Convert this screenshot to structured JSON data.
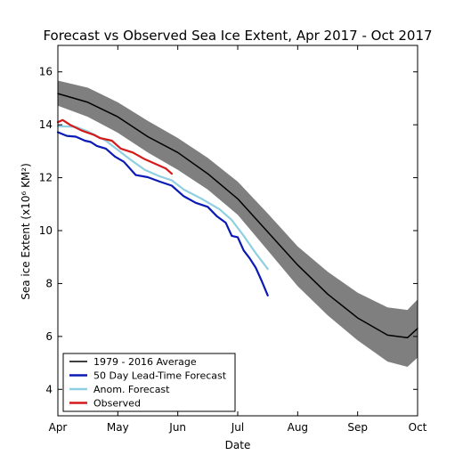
{
  "chart_data": {
    "type": "line",
    "title": "Forecast vs Observed Sea Ice Extent, Apr 2017 - Oct 2017",
    "xlabel": "Date",
    "ylabel": "Sea ice Extent (x10⁶ KM²)",
    "x_ticks": [
      "Apr",
      "May",
      "Jun",
      "Jul",
      "Aug",
      "Sep",
      "Oct"
    ],
    "xlim": [
      "Apr",
      "Oct"
    ],
    "ylim": [
      3,
      17
    ],
    "y_ticks": [
      4,
      6,
      8,
      10,
      12,
      14,
      16
    ],
    "legend_position": "lower-left",
    "band": {
      "series": "1979 - 2016 Average",
      "color": "#7f7f7f",
      "points": [
        {
          "x": 0.0,
          "lo": 14.72,
          "hi": 15.67
        },
        {
          "x": 0.5,
          "lo": 14.3,
          "hi": 15.4
        },
        {
          "x": 1.0,
          "lo": 13.7,
          "hi": 14.85
        },
        {
          "x": 1.5,
          "lo": 12.95,
          "hi": 14.15
        },
        {
          "x": 2.0,
          "lo": 12.3,
          "hi": 13.5
        },
        {
          "x": 2.5,
          "lo": 11.55,
          "hi": 12.75
        },
        {
          "x": 3.0,
          "lo": 10.6,
          "hi": 11.85
        },
        {
          "x": 3.5,
          "lo": 9.25,
          "hi": 10.65
        },
        {
          "x": 4.0,
          "lo": 7.9,
          "hi": 9.4
        },
        {
          "x": 4.5,
          "lo": 6.8,
          "hi": 8.45
        },
        {
          "x": 5.0,
          "lo": 5.85,
          "hi": 7.65
        },
        {
          "x": 5.5,
          "lo": 5.05,
          "hi": 7.1
        },
        {
          "x": 5.83,
          "lo": 4.85,
          "hi": 7.0
        },
        {
          "x": 6.0,
          "lo": 5.2,
          "hi": 7.4
        }
      ]
    },
    "series": [
      {
        "name": "1979 - 2016 Average",
        "color": "#000000",
        "width": 1.5,
        "points": [
          [
            0.0,
            15.18
          ],
          [
            0.5,
            14.85
          ],
          [
            1.0,
            14.3
          ],
          [
            1.5,
            13.55
          ],
          [
            2.0,
            12.95
          ],
          [
            2.5,
            12.15
          ],
          [
            3.0,
            11.2
          ],
          [
            3.5,
            9.95
          ],
          [
            4.0,
            8.7
          ],
          [
            4.5,
            7.6
          ],
          [
            5.0,
            6.7
          ],
          [
            5.5,
            6.05
          ],
          [
            5.83,
            5.95
          ],
          [
            6.0,
            6.3
          ]
        ]
      },
      {
        "name": "50 Day Lead-Time Forecast",
        "color": "#0b1ab4",
        "width": 2.2,
        "points": [
          [
            0.0,
            13.72
          ],
          [
            0.15,
            13.58
          ],
          [
            0.3,
            13.55
          ],
          [
            0.45,
            13.4
          ],
          [
            0.55,
            13.35
          ],
          [
            0.65,
            13.2
          ],
          [
            0.8,
            13.1
          ],
          [
            0.95,
            12.8
          ],
          [
            1.1,
            12.6
          ],
          [
            1.3,
            12.1
          ],
          [
            1.5,
            12.02
          ],
          [
            1.7,
            11.85
          ],
          [
            1.9,
            11.7
          ],
          [
            2.1,
            11.3
          ],
          [
            2.3,
            11.05
          ],
          [
            2.5,
            10.9
          ],
          [
            2.65,
            10.55
          ],
          [
            2.8,
            10.3
          ],
          [
            2.9,
            9.8
          ],
          [
            3.0,
            9.75
          ],
          [
            3.1,
            9.25
          ],
          [
            3.2,
            8.95
          ],
          [
            3.3,
            8.6
          ],
          [
            3.4,
            8.1
          ],
          [
            3.5,
            7.55
          ]
        ]
      },
      {
        "name": "Anom. Forecast",
        "color": "#8fcfe3",
        "width": 2.2,
        "points": [
          [
            0.0,
            13.95
          ],
          [
            0.3,
            13.92
          ],
          [
            0.5,
            13.75
          ],
          [
            0.8,
            13.4
          ],
          [
            1.0,
            13.05
          ],
          [
            1.2,
            12.7
          ],
          [
            1.45,
            12.3
          ],
          [
            1.7,
            12.05
          ],
          [
            1.9,
            11.9
          ],
          [
            2.1,
            11.55
          ],
          [
            2.4,
            11.2
          ],
          [
            2.7,
            10.8
          ],
          [
            2.9,
            10.4
          ],
          [
            3.1,
            9.8
          ],
          [
            3.3,
            9.15
          ],
          [
            3.5,
            8.55
          ]
        ]
      },
      {
        "name": "Observed",
        "color": "#d41a1a",
        "width": 2.2,
        "points": [
          [
            0.0,
            14.1
          ],
          [
            0.08,
            14.18
          ],
          [
            0.2,
            14.0
          ],
          [
            0.4,
            13.78
          ],
          [
            0.6,
            13.62
          ],
          [
            0.7,
            13.5
          ],
          [
            0.9,
            13.4
          ],
          [
            1.05,
            13.1
          ],
          [
            1.25,
            12.95
          ],
          [
            1.45,
            12.7
          ],
          [
            1.65,
            12.5
          ],
          [
            1.8,
            12.35
          ],
          [
            1.9,
            12.15
          ]
        ]
      }
    ]
  }
}
